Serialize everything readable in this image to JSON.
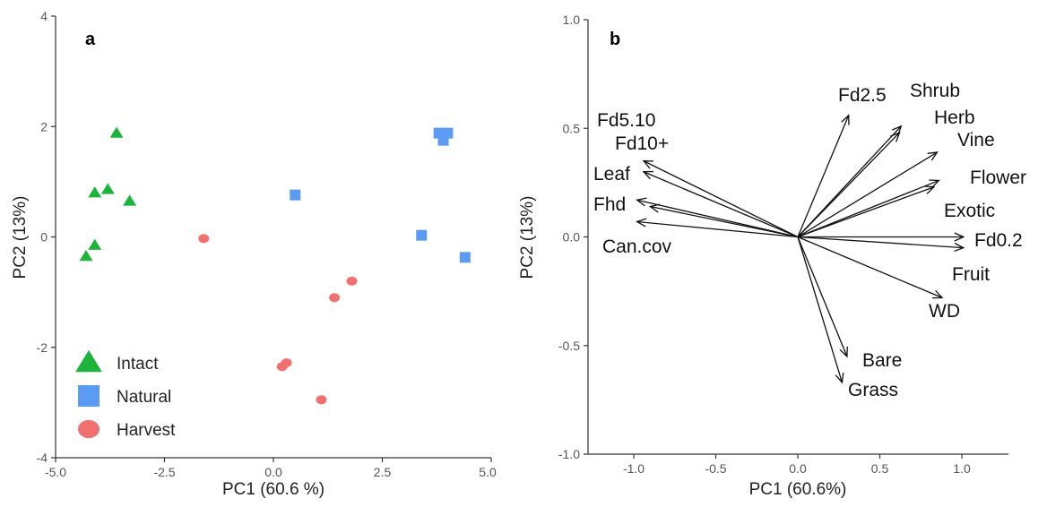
{
  "chart_data": [
    {
      "type": "scatter",
      "panel_label": "a",
      "xlabel": "PC1 (60.6 %)",
      "ylabel": "PC2 (13%)",
      "xlim": [
        -5.0,
        5.0
      ],
      "ylim": [
        -4,
        4
      ],
      "xticks": [
        -5.0,
        -2.5,
        0.0,
        2.5,
        5.0
      ],
      "xtick_labels": [
        "-5.0",
        "-2.5",
        "0.0",
        "2.5",
        "5.0"
      ],
      "yticks": [
        -4,
        -2,
        0,
        2,
        4
      ],
      "ytick_labels": [
        "-4",
        "-2",
        "0",
        "2",
        "4"
      ],
      "grid": false,
      "legend_position": "bottom-left",
      "series": [
        {
          "name": "Intact",
          "marker": "triangle",
          "color": "#1db43c",
          "points": [
            [
              -3.6,
              1.88
            ],
            [
              -4.1,
              0.8
            ],
            [
              -3.8,
              0.86
            ],
            [
              -3.3,
              0.65
            ],
            [
              -4.1,
              -0.15
            ],
            [
              -4.3,
              -0.35
            ]
          ]
        },
        {
          "name": "Natural",
          "marker": "square",
          "color": "#5b9bf3",
          "points": [
            [
              0.5,
              0.76
            ],
            [
              3.8,
              1.88
            ],
            [
              4.0,
              1.88
            ],
            [
              3.9,
              1.75
            ],
            [
              3.4,
              0.03
            ],
            [
              4.4,
              -0.37
            ]
          ]
        },
        {
          "name": "Harvest",
          "marker": "circle",
          "color": "#f07070",
          "points": [
            [
              -1.6,
              -0.03
            ],
            [
              1.8,
              -0.8
            ],
            [
              1.4,
              -1.1
            ],
            [
              0.3,
              -2.28
            ],
            [
              0.2,
              -2.35
            ],
            [
              1.1,
              -2.95
            ]
          ]
        }
      ]
    },
    {
      "type": "biplot-loadings",
      "panel_label": "b",
      "xlabel": "PC1 (60.6%)",
      "ylabel": "PC2 (13%)",
      "xlim": [
        -1.3,
        1.3
      ],
      "ylim": [
        -1.0,
        1.0
      ],
      "xticks": [
        -1.0,
        -0.5,
        0.0,
        0.5,
        1.0
      ],
      "xtick_labels": [
        "-1.0",
        "-0.5",
        "0.0",
        "0.5",
        "1.0"
      ],
      "yticks": [
        -1.0,
        -0.5,
        0.0,
        0.5,
        1.0
      ],
      "ytick_labels": [
        "-1.0",
        "-0.5",
        "0.0",
        "0.5",
        "1.0"
      ],
      "grid": false,
      "vectors": [
        {
          "name": "Fd2.5",
          "x": 0.31,
          "y": 0.56
        },
        {
          "name": "Shrub",
          "x": 0.63,
          "y": 0.51
        },
        {
          "name": "Herb",
          "x": 0.62,
          "y": 0.48
        },
        {
          "name": "Vine",
          "x": 0.85,
          "y": 0.39
        },
        {
          "name": "Flower",
          "x": 0.86,
          "y": 0.26
        },
        {
          "name": "Exotic",
          "x": 0.83,
          "y": 0.23
        },
        {
          "name": "Fd0.2",
          "x": 1.01,
          "y": 0.0
        },
        {
          "name": "Fruit",
          "x": 1.01,
          "y": -0.05
        },
        {
          "name": "WD",
          "x": 0.88,
          "y": -0.28
        },
        {
          "name": "Bare",
          "x": 0.3,
          "y": -0.55
        },
        {
          "name": "Grass",
          "x": 0.27,
          "y": -0.67
        },
        {
          "name": "Fd5.10",
          "x": -0.94,
          "y": 0.35
        },
        {
          "name": "Fd10+",
          "x": -0.94,
          "y": 0.3
        },
        {
          "name": "Leaf",
          "x": -0.98,
          "y": 0.17
        },
        {
          "name": "Fhd",
          "x": -0.9,
          "y": 0.14
        },
        {
          "name": "Can.cov",
          "x": -0.98,
          "y": 0.07
        }
      ]
    }
  ]
}
